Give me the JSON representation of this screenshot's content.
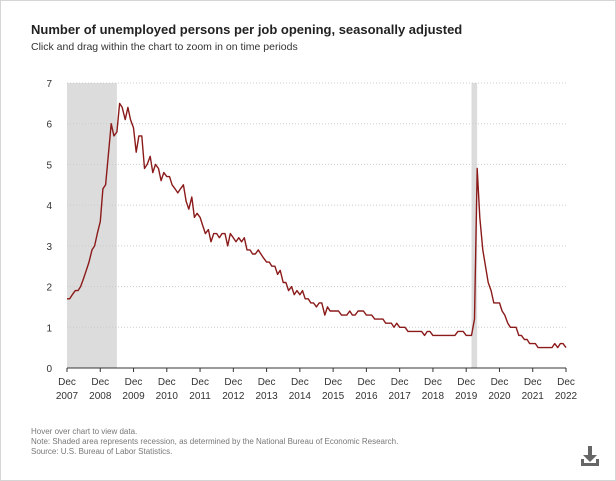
{
  "title": "Number of unemployed persons per job opening, seasonally adjusted",
  "subtitle": "Click and drag within the chart to zoom in on time periods",
  "notes": {
    "hover": "Hover over chart to view data.",
    "note": "Note: Shaded area represents recession, as determined by the National Bureau of Economic Research.",
    "source": "Source: U.S. Bureau of Labor Statistics."
  },
  "icons": {
    "download": "download-icon"
  },
  "colors": {
    "line": "#8b1a1a",
    "recession": "#dcdcdc",
    "grid": "#cccccc"
  },
  "chart_data": {
    "type": "line",
    "title": "Number of unemployed persons per job opening, seasonally adjusted",
    "xlabel": "",
    "ylabel": "",
    "ylim": [
      0,
      7
    ],
    "xlim": [
      2007.92,
      2022.92
    ],
    "y_ticks": [
      "0",
      "1",
      "2",
      "3",
      "4",
      "5",
      "6",
      "7"
    ],
    "x_ticks": [
      {
        "top": "Dec",
        "bottom": "2007",
        "at": 2007.92
      },
      {
        "top": "Dec",
        "bottom": "2008",
        "at": 2008.92
      },
      {
        "top": "Dec",
        "bottom": "2009",
        "at": 2009.92
      },
      {
        "top": "Dec",
        "bottom": "2010",
        "at": 2010.92
      },
      {
        "top": "Dec",
        "bottom": "2011",
        "at": 2011.92
      },
      {
        "top": "Dec",
        "bottom": "2012",
        "at": 2012.92
      },
      {
        "top": "Dec",
        "bottom": "2013",
        "at": 2013.92
      },
      {
        "top": "Dec",
        "bottom": "2014",
        "at": 2014.92
      },
      {
        "top": "Dec",
        "bottom": "2015",
        "at": 2015.92
      },
      {
        "top": "Dec",
        "bottom": "2016",
        "at": 2016.92
      },
      {
        "top": "Dec",
        "bottom": "2017",
        "at": 2017.92
      },
      {
        "top": "Dec",
        "bottom": "2018",
        "at": 2018.92
      },
      {
        "top": "Dec",
        "bottom": "2019",
        "at": 2019.92
      },
      {
        "top": "Dec",
        "bottom": "2020",
        "at": 2020.92
      },
      {
        "top": "Dec",
        "bottom": "2021",
        "at": 2021.92
      },
      {
        "top": "Dec",
        "bottom": "2022",
        "at": 2022.92
      }
    ],
    "grid": true,
    "legend": "none",
    "recessions": [
      [
        2007.92,
        2009.42
      ],
      [
        2020.08,
        2020.25
      ]
    ],
    "series": [
      {
        "points": [
          [
            2007.92,
            1.7
          ],
          [
            2008.0,
            1.7
          ],
          [
            2008.08,
            1.8
          ],
          [
            2008.17,
            1.9
          ],
          [
            2008.25,
            1.9
          ],
          [
            2008.33,
            2.0
          ],
          [
            2008.42,
            2.2
          ],
          [
            2008.5,
            2.4
          ],
          [
            2008.58,
            2.6
          ],
          [
            2008.67,
            2.9
          ],
          [
            2008.75,
            3.0
          ],
          [
            2008.83,
            3.3
          ],
          [
            2008.92,
            3.6
          ],
          [
            2009.0,
            4.4
          ],
          [
            2009.08,
            4.5
          ],
          [
            2009.17,
            5.3
          ],
          [
            2009.25,
            6.0
          ],
          [
            2009.33,
            5.7
          ],
          [
            2009.42,
            5.8
          ],
          [
            2009.5,
            6.5
          ],
          [
            2009.58,
            6.4
          ],
          [
            2009.67,
            6.1
          ],
          [
            2009.75,
            6.4
          ],
          [
            2009.83,
            6.1
          ],
          [
            2009.92,
            5.9
          ],
          [
            2010.0,
            5.3
          ],
          [
            2010.08,
            5.7
          ],
          [
            2010.17,
            5.7
          ],
          [
            2010.25,
            4.9
          ],
          [
            2010.33,
            5.0
          ],
          [
            2010.42,
            5.2
          ],
          [
            2010.5,
            4.8
          ],
          [
            2010.58,
            5.0
          ],
          [
            2010.67,
            4.9
          ],
          [
            2010.75,
            4.6
          ],
          [
            2010.83,
            4.8
          ],
          [
            2010.92,
            4.7
          ],
          [
            2011.0,
            4.7
          ],
          [
            2011.08,
            4.5
          ],
          [
            2011.17,
            4.4
          ],
          [
            2011.25,
            4.3
          ],
          [
            2011.33,
            4.4
          ],
          [
            2011.42,
            4.5
          ],
          [
            2011.5,
            4.1
          ],
          [
            2011.58,
            3.9
          ],
          [
            2011.67,
            4.2
          ],
          [
            2011.75,
            3.7
          ],
          [
            2011.83,
            3.8
          ],
          [
            2011.92,
            3.7
          ],
          [
            2012.0,
            3.5
          ],
          [
            2012.08,
            3.3
          ],
          [
            2012.17,
            3.4
          ],
          [
            2012.25,
            3.1
          ],
          [
            2012.33,
            3.3
          ],
          [
            2012.42,
            3.3
          ],
          [
            2012.5,
            3.2
          ],
          [
            2012.58,
            3.3
          ],
          [
            2012.67,
            3.3
          ],
          [
            2012.75,
            3.0
          ],
          [
            2012.83,
            3.3
          ],
          [
            2012.92,
            3.2
          ],
          [
            2013.0,
            3.1
          ],
          [
            2013.08,
            3.2
          ],
          [
            2013.17,
            3.1
          ],
          [
            2013.25,
            3.2
          ],
          [
            2013.33,
            2.9
          ],
          [
            2013.42,
            2.9
          ],
          [
            2013.5,
            2.8
          ],
          [
            2013.58,
            2.8
          ],
          [
            2013.67,
            2.9
          ],
          [
            2013.75,
            2.8
          ],
          [
            2013.83,
            2.7
          ],
          [
            2013.92,
            2.6
          ],
          [
            2014.0,
            2.6
          ],
          [
            2014.08,
            2.5
          ],
          [
            2014.17,
            2.5
          ],
          [
            2014.25,
            2.3
          ],
          [
            2014.33,
            2.4
          ],
          [
            2014.42,
            2.1
          ],
          [
            2014.5,
            2.1
          ],
          [
            2014.58,
            1.9
          ],
          [
            2014.67,
            2.0
          ],
          [
            2014.75,
            1.8
          ],
          [
            2014.83,
            1.9
          ],
          [
            2014.92,
            1.8
          ],
          [
            2015.0,
            1.9
          ],
          [
            2015.08,
            1.7
          ],
          [
            2015.17,
            1.7
          ],
          [
            2015.25,
            1.6
          ],
          [
            2015.33,
            1.6
          ],
          [
            2015.42,
            1.5
          ],
          [
            2015.5,
            1.6
          ],
          [
            2015.58,
            1.6
          ],
          [
            2015.67,
            1.3
          ],
          [
            2015.75,
            1.5
          ],
          [
            2015.83,
            1.4
          ],
          [
            2015.92,
            1.4
          ],
          [
            2016.0,
            1.4
          ],
          [
            2016.08,
            1.4
          ],
          [
            2016.17,
            1.3
          ],
          [
            2016.25,
            1.3
          ],
          [
            2016.33,
            1.3
          ],
          [
            2016.42,
            1.4
          ],
          [
            2016.5,
            1.3
          ],
          [
            2016.58,
            1.3
          ],
          [
            2016.67,
            1.4
          ],
          [
            2016.75,
            1.4
          ],
          [
            2016.83,
            1.4
          ],
          [
            2016.92,
            1.3
          ],
          [
            2017.0,
            1.3
          ],
          [
            2017.08,
            1.3
          ],
          [
            2017.17,
            1.2
          ],
          [
            2017.25,
            1.2
          ],
          [
            2017.33,
            1.2
          ],
          [
            2017.42,
            1.2
          ],
          [
            2017.5,
            1.1
          ],
          [
            2017.58,
            1.1
          ],
          [
            2017.67,
            1.1
          ],
          [
            2017.75,
            1.0
          ],
          [
            2017.83,
            1.1
          ],
          [
            2017.92,
            1.0
          ],
          [
            2018.0,
            1.0
          ],
          [
            2018.08,
            1.0
          ],
          [
            2018.17,
            0.9
          ],
          [
            2018.25,
            0.9
          ],
          [
            2018.33,
            0.9
          ],
          [
            2018.42,
            0.9
          ],
          [
            2018.5,
            0.9
          ],
          [
            2018.58,
            0.9
          ],
          [
            2018.67,
            0.8
          ],
          [
            2018.75,
            0.9
          ],
          [
            2018.83,
            0.9
          ],
          [
            2018.92,
            0.8
          ],
          [
            2019.0,
            0.8
          ],
          [
            2019.08,
            0.8
          ],
          [
            2019.17,
            0.8
          ],
          [
            2019.25,
            0.8
          ],
          [
            2019.33,
            0.8
          ],
          [
            2019.42,
            0.8
          ],
          [
            2019.5,
            0.8
          ],
          [
            2019.58,
            0.8
          ],
          [
            2019.67,
            0.9
          ],
          [
            2019.75,
            0.9
          ],
          [
            2019.83,
            0.9
          ],
          [
            2019.92,
            0.8
          ],
          [
            2020.0,
            0.8
          ],
          [
            2020.08,
            0.8
          ],
          [
            2020.17,
            1.2
          ],
          [
            2020.25,
            4.9
          ],
          [
            2020.33,
            3.7
          ],
          [
            2020.42,
            2.9
          ],
          [
            2020.5,
            2.5
          ],
          [
            2020.58,
            2.1
          ],
          [
            2020.67,
            1.9
          ],
          [
            2020.75,
            1.6
          ],
          [
            2020.83,
            1.6
          ],
          [
            2020.92,
            1.6
          ],
          [
            2021.0,
            1.4
          ],
          [
            2021.08,
            1.3
          ],
          [
            2021.17,
            1.1
          ],
          [
            2021.25,
            1.0
          ],
          [
            2021.33,
            1.0
          ],
          [
            2021.42,
            1.0
          ],
          [
            2021.5,
            0.8
          ],
          [
            2021.58,
            0.8
          ],
          [
            2021.67,
            0.7
          ],
          [
            2021.75,
            0.7
          ],
          [
            2021.83,
            0.6
          ],
          [
            2021.92,
            0.6
          ],
          [
            2022.0,
            0.6
          ],
          [
            2022.08,
            0.5
          ],
          [
            2022.17,
            0.5
          ],
          [
            2022.25,
            0.5
          ],
          [
            2022.33,
            0.5
          ],
          [
            2022.42,
            0.5
          ],
          [
            2022.5,
            0.5
          ],
          [
            2022.58,
            0.6
          ],
          [
            2022.67,
            0.5
          ],
          [
            2022.75,
            0.6
          ],
          [
            2022.83,
            0.6
          ],
          [
            2022.92,
            0.5
          ]
        ]
      }
    ]
  }
}
